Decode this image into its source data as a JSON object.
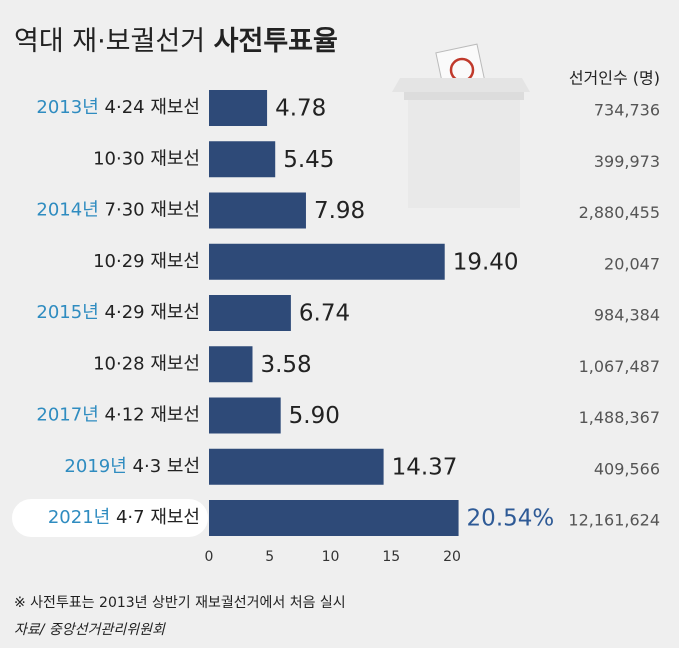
{
  "chart_data": {
    "type": "bar",
    "orientation": "horizontal",
    "title": [
      "역대 재·보궐선거",
      "사전투표율"
    ],
    "years": [
      "2013년",
      null,
      "2014년",
      null,
      "2015년",
      null,
      "2017년",
      "2019년",
      "2021년"
    ],
    "categories": [
      "4·24 재보선",
      "10·30 재보선",
      "7·30 재보선",
      "10·29 재보선",
      "4·29 재보선",
      "10·28 재보선",
      "4·12 재보선",
      "4·3 보선",
      "4·7 재보선"
    ],
    "values": [
      4.78,
      5.45,
      7.98,
      19.4,
      6.74,
      3.58,
      5.9,
      14.37,
      20.54
    ],
    "value_labels": [
      "4.78",
      "5.45",
      "7.98",
      "19.40",
      "6.74",
      "3.58",
      "5.90",
      "14.37",
      "20.54%"
    ],
    "color": "#2e4a78",
    "xlim": [
      0,
      20
    ],
    "xticks": [
      0,
      5,
      10,
      15,
      20
    ],
    "voter_header": "선거인수 (명)",
    "voter_counts": [
      "734,736",
      "399,973",
      "2,880,455",
      "20,047",
      "984,384",
      "1,067,487",
      "1,488,367",
      "409,566",
      "12,161,624"
    ],
    "note": "※ 사전투표는 2013년 상반기 재보궐선거에서 처음 실시",
    "source": "자료/ 중앙선거관리위원회"
  }
}
